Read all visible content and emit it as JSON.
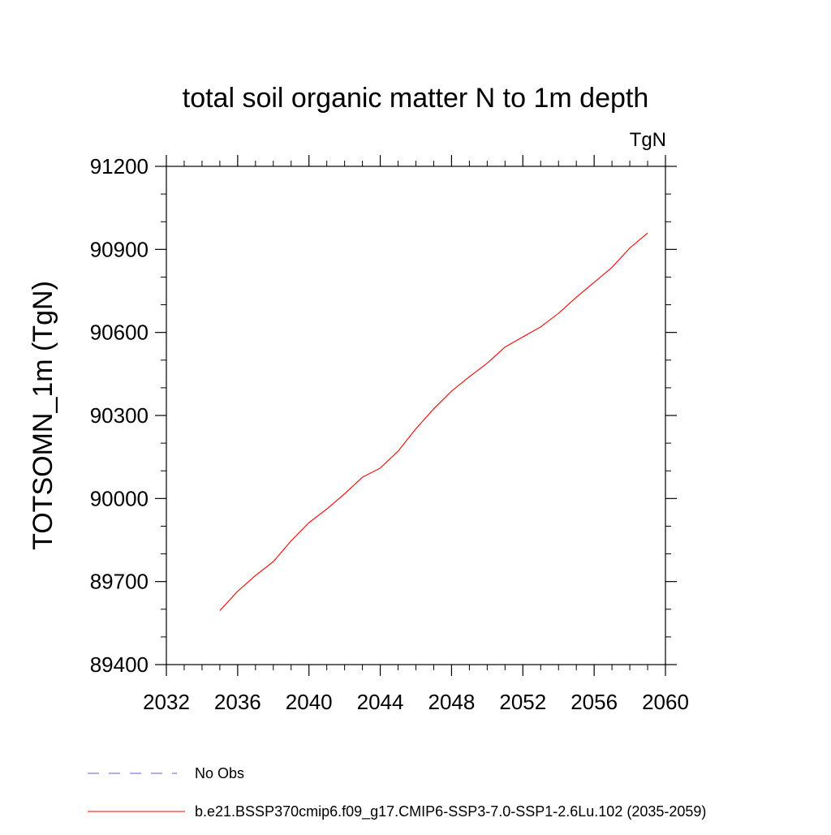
{
  "chart_data": {
    "type": "line",
    "title": "total soil organic matter N to 1m depth",
    "units_label": "TgN",
    "ylabel": "TOTSOMN_1m  (TgN)",
    "xlabel": "",
    "xlim": [
      2032,
      2060
    ],
    "ylim": [
      89400,
      91200
    ],
    "x_ticks": [
      2032,
      2036,
      2040,
      2044,
      2048,
      2052,
      2056,
      2060
    ],
    "x_tick_labels": [
      "2032",
      "2036",
      "2040",
      "2044",
      "2048",
      "2052",
      "2056",
      "2060"
    ],
    "y_ticks": [
      89400,
      89700,
      90000,
      90300,
      90600,
      90900,
      91200
    ],
    "y_tick_labels": [
      "89400",
      "89700",
      "90000",
      "90300",
      "90600",
      "90900",
      "91200"
    ],
    "x_minor_step": 1,
    "y_minor_step": 100,
    "grid": false,
    "legend_position": "bottom",
    "series": [
      {
        "name": "No Obs",
        "color": "#6a5acd",
        "dash": "dashed",
        "x": [],
        "values": []
      },
      {
        "name": "b.e21.BSSP370cmip6.f09_g17.CMIP6-SSP3-7.0-SSP1-2.6Lu.102 (2035-2059)",
        "color": "#ff0000",
        "dash": "solid",
        "x": [
          2035,
          2036,
          2037,
          2038,
          2039,
          2040,
          2041,
          2042,
          2043,
          2044,
          2045,
          2046,
          2047,
          2048,
          2049,
          2050,
          2051,
          2052,
          2053,
          2054,
          2055,
          2056,
          2057,
          2058,
          2059
        ],
        "values": [
          89595,
          89665,
          89722,
          89772,
          89847,
          89913,
          89962,
          90017,
          90077,
          90110,
          90171,
          90252,
          90324,
          90388,
          90440,
          90489,
          90547,
          90584,
          90620,
          90669,
          90727,
          90781,
          90835,
          90905,
          90959
        ]
      }
    ]
  }
}
